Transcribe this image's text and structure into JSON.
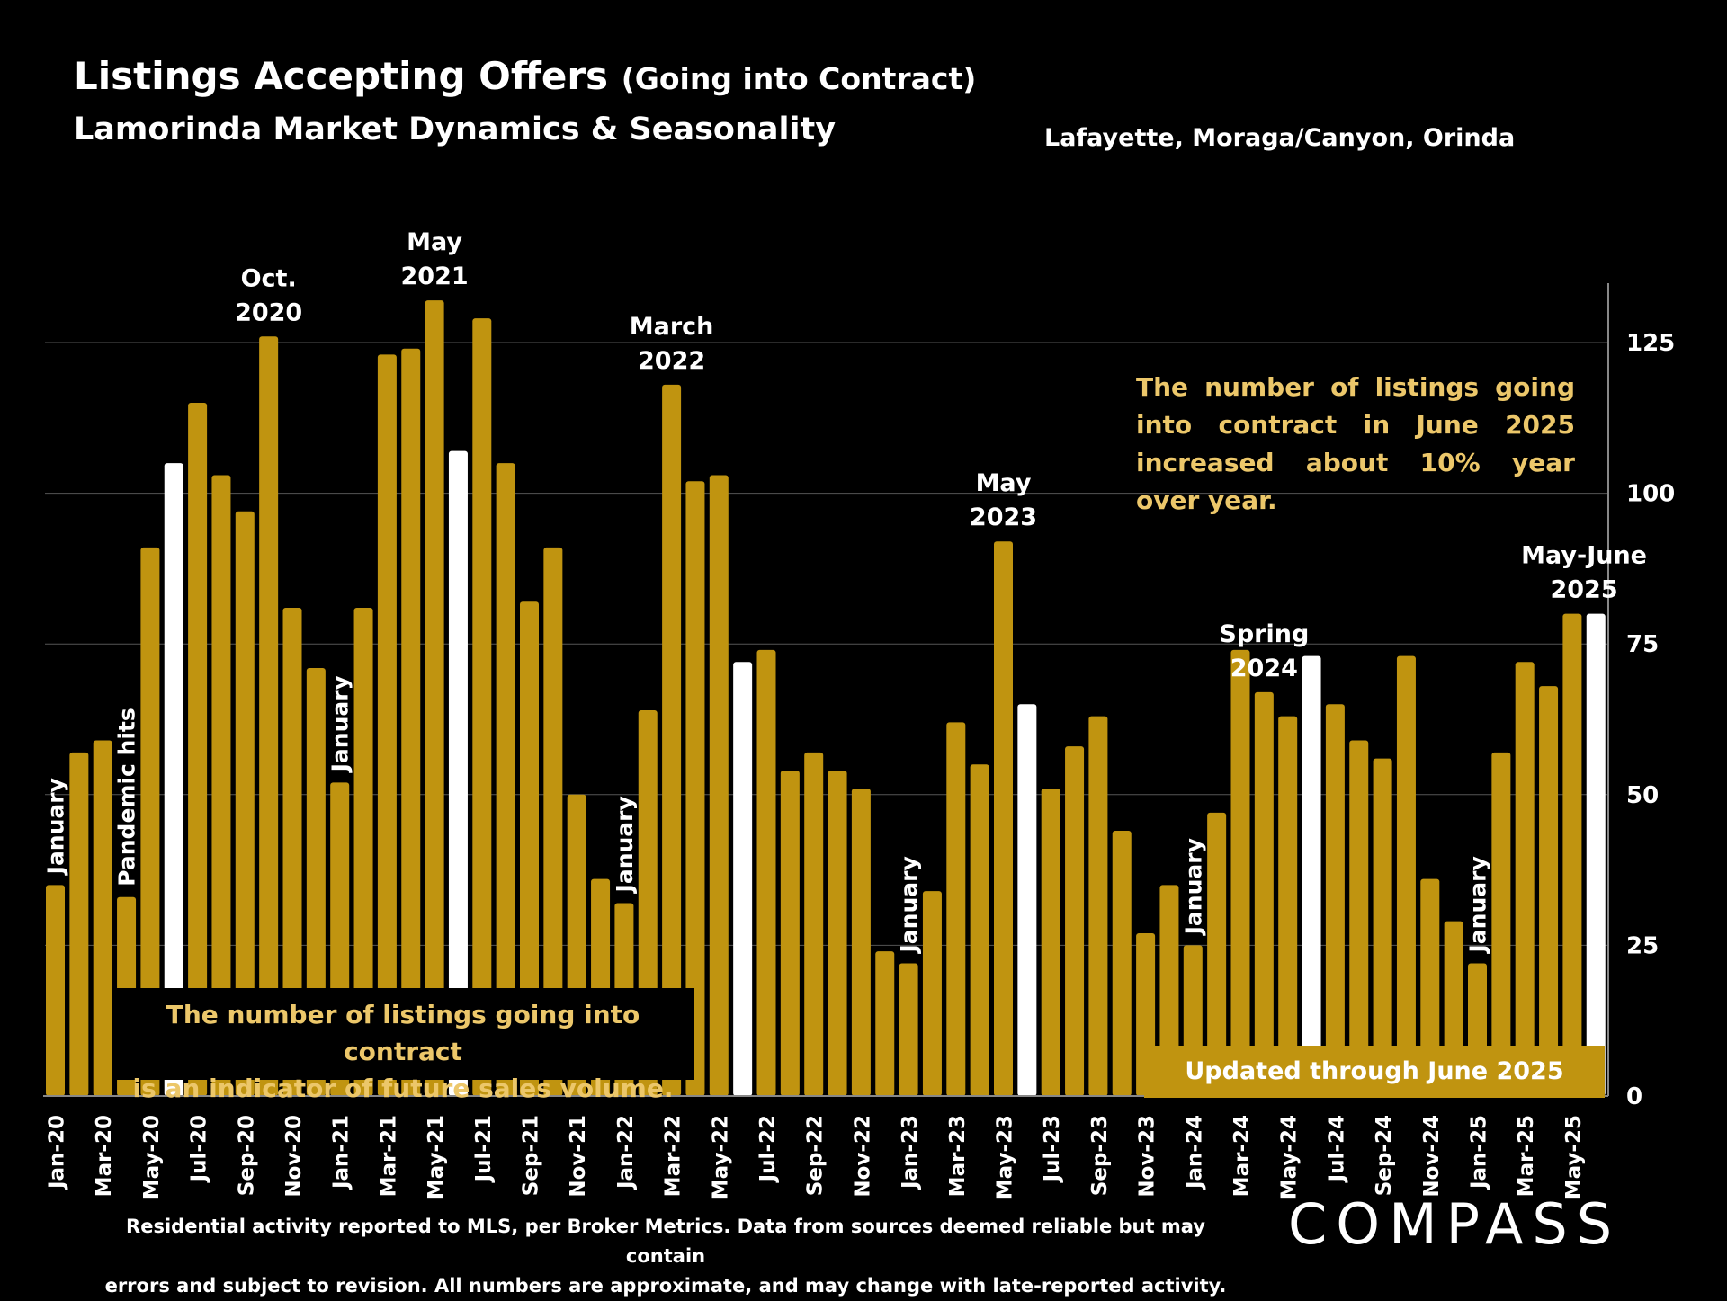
{
  "title_main": "Listings Accepting Offers",
  "title_paren": "(Going into Contract)",
  "subtitle": "Lamorinda Market Dynamics & Seasonality",
  "region": "Lafayette, Moraga/Canyon, Orinda",
  "callout_right": "The number of listings going into contract in June 2025 increased about 10% year over year.",
  "callout_left_line1": "The number of listings going into contract",
  "callout_left_line2": "is an indicator of future sales volume.",
  "updated_label": "Updated through June 2025",
  "footnote_line1": "Residential activity reported to MLS, per Broker Metrics. Data from sources deemed reliable but may contain",
  "footnote_line2": "errors and subject to revision. All numbers are approximate, and may change with late-reported activity.",
  "logo": "COMPASS",
  "colors": {
    "bar": "#c09410",
    "highlight": "#ffffff",
    "callout": "#ecc76a",
    "background": "#000000"
  },
  "chart_data": {
    "type": "bar",
    "categories": [
      "Jan-20",
      "Feb-20",
      "Mar-20",
      "Apr-20",
      "May-20",
      "Jun-20",
      "Jul-20",
      "Aug-20",
      "Sep-20",
      "Oct-20",
      "Nov-20",
      "Dec-20",
      "Jan-21",
      "Feb-21",
      "Mar-21",
      "Apr-21",
      "May-21",
      "Jun-21",
      "Jul-21",
      "Aug-21",
      "Sep-21",
      "Oct-21",
      "Nov-21",
      "Dec-21",
      "Jan-22",
      "Feb-22",
      "Mar-22",
      "Apr-22",
      "May-22",
      "Jun-22",
      "Jul-22",
      "Aug-22",
      "Sep-22",
      "Oct-22",
      "Nov-22",
      "Dec-22",
      "Jan-23",
      "Feb-23",
      "Mar-23",
      "Apr-23",
      "May-23",
      "Jun-23",
      "Jul-23",
      "Aug-23",
      "Sep-23",
      "Oct-23",
      "Nov-23",
      "Dec-23",
      "Jan-24",
      "Feb-24",
      "Mar-24",
      "Apr-24",
      "May-24",
      "Jun-24",
      "Jul-24",
      "Aug-24",
      "Sep-24",
      "Oct-24",
      "Nov-24",
      "Dec-24",
      "Jan-25",
      "Feb-25",
      "Mar-25",
      "Apr-25",
      "May-25",
      "Jun-25"
    ],
    "x_tick_labels": [
      "Jan-20",
      "Mar-20",
      "May-20",
      "Jul-20",
      "Sep-20",
      "Nov-20",
      "Jan-21",
      "Mar-21",
      "May-21",
      "Jul-21",
      "Sep-21",
      "Nov-21",
      "Jan-22",
      "Mar-22",
      "May-22",
      "Jul-22",
      "Sep-22",
      "Nov-22",
      "Jan-23",
      "Mar-23",
      "May-23",
      "Jul-23",
      "Sep-23",
      "Nov-23",
      "Jan-24",
      "Mar-24",
      "May-24",
      "Jul-24",
      "Sep-24",
      "Nov-24",
      "Jan-25",
      "Mar-25",
      "May-25"
    ],
    "values": [
      35,
      57,
      59,
      33,
      91,
      105,
      115,
      103,
      97,
      126,
      81,
      71,
      52,
      81,
      123,
      124,
      132,
      107,
      129,
      105,
      82,
      91,
      50,
      36,
      32,
      64,
      118,
      102,
      103,
      72,
      74,
      54,
      57,
      54,
      51,
      24,
      22,
      34,
      62,
      55,
      92,
      65,
      51,
      58,
      63,
      44,
      27,
      35,
      25,
      47,
      74,
      67,
      63,
      73,
      65,
      59,
      56,
      73,
      36,
      29,
      22,
      57,
      72,
      68,
      80,
      80
    ],
    "highlight_indices": [
      5,
      17,
      29,
      41,
      53,
      65
    ],
    "y_axis": {
      "position": "right",
      "ticks": [
        0,
        25,
        50,
        75,
        100,
        125
      ],
      "ylim": [
        0,
        135
      ]
    },
    "grid": true,
    "annotations": [
      {
        "text": "January",
        "index": 0,
        "vertical": true
      },
      {
        "text": "Pandemic  hits",
        "index": 3,
        "vertical": true
      },
      {
        "text": "January",
        "index": 12,
        "vertical": true
      },
      {
        "text": "January",
        "index": 24,
        "vertical": true
      },
      {
        "text": "January",
        "index": 36,
        "vertical": true
      },
      {
        "text": "January",
        "index": 48,
        "vertical": true
      },
      {
        "text": "January",
        "index": 60,
        "vertical": true
      },
      {
        "text": "Oct.\n2020",
        "index": 9,
        "vertical": false
      },
      {
        "text": "May\n2021",
        "index": 16,
        "vertical": false
      },
      {
        "text": "March\n2022",
        "index": 26,
        "vertical": false
      },
      {
        "text": "May\n2023",
        "index": 40,
        "vertical": false
      },
      {
        "text": "Spring\n2024",
        "index": 51,
        "vertical": false
      },
      {
        "text": "May-June\n2025",
        "index": 64.5,
        "vertical": false
      }
    ]
  }
}
